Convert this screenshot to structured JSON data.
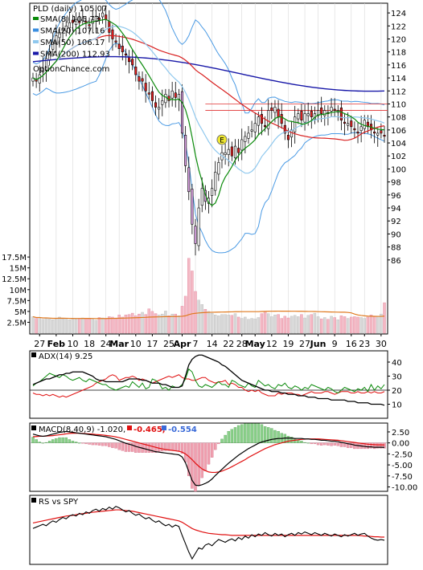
{
  "chart_data": {
    "type": "stock-chart",
    "symbol_line": "PLD (daily) 105.07",
    "watermark": "OptionChance.com",
    "price_axis": {
      "ylim": [
        84,
        125
      ],
      "ticks": [
        86,
        88,
        90,
        92,
        94,
        96,
        98,
        100,
        102,
        104,
        106,
        108,
        110,
        112,
        114,
        116,
        118,
        120,
        122,
        124
      ]
    },
    "volume_axis": {
      "ylim": [
        0,
        19000000
      ],
      "tick_labels": [
        "2.5M",
        "5M",
        "7.5M",
        "10M",
        "12.5M",
        "15M",
        "17.5M"
      ],
      "tick_values": [
        2500000,
        5000000,
        7500000,
        10000000,
        12500000,
        15000000,
        17500000
      ]
    },
    "x_axis": {
      "tick_labels": [
        "27",
        "Feb",
        "10",
        "18",
        "24",
        "Mar",
        "10",
        "17",
        "25",
        "Apr",
        "7",
        "14",
        "22",
        "28",
        "May",
        "12",
        "19",
        "27",
        "Jun",
        "9",
        "16",
        "23",
        "30"
      ],
      "tick_index": [
        2,
        7,
        12,
        17,
        22,
        26,
        31,
        36,
        41,
        45,
        49,
        54,
        59,
        63,
        67,
        72,
        77,
        82,
        86,
        91,
        96,
        100,
        105
      ],
      "bold_labels": [
        "Feb",
        "Mar",
        "Apr",
        "May",
        "Jun"
      ],
      "count": 107
    },
    "legend": [
      {
        "label": "SMA(8) 105.73",
        "color": "#0a8a0a"
      },
      {
        "label": "SMA(20) 107.16",
        "color": "#3a8ee0"
      },
      {
        "label": "SMA(50) 106.17",
        "color": "#8fc8ee"
      },
      {
        "label": "SMA(200) 112.93",
        "color": "#1818a8"
      }
    ],
    "event_marker": "E",
    "closes": [
      114,
      113.5,
      114.5,
      115.5,
      117,
      118,
      119.5,
      120.5,
      121,
      121.5,
      122,
      122.5,
      122.5,
      123,
      122.5,
      123,
      122.5,
      122,
      123,
      123.5,
      123,
      124,
      123,
      121,
      120,
      119.5,
      118.5,
      118,
      117.5,
      116.5,
      116,
      114.5,
      113.5,
      113.5,
      112,
      111.5,
      110.5,
      109.5,
      109.5,
      110.5,
      111.5,
      110.5,
      112,
      111,
      111.5,
      105.5,
      100.5,
      96.5,
      91.5,
      88.5,
      94,
      97,
      95,
      95.5,
      97,
      99.5,
      101,
      102.5,
      102.5,
      103,
      102,
      103.5,
      102.5,
      104.5,
      105,
      105.5,
      106,
      107,
      108,
      107,
      106.5,
      109,
      109,
      109.5,
      108,
      107,
      105.5,
      104.5,
      106,
      108,
      108.5,
      107.5,
      108.5,
      108.5,
      108,
      108.5,
      109,
      108.5,
      109,
      108.5,
      109.5,
      109,
      109,
      107.5,
      107,
      107,
      106.5,
      106,
      105.5,
      106.5,
      107.5,
      106.5,
      106,
      105.5,
      105.5,
      105.5,
      105.07
    ],
    "volumes": [
      3800000,
      3400000,
      3600000,
      3200000,
      3500000,
      3300000,
      3100000,
      3400000,
      3700000,
      3300000,
      3400000,
      3100000,
      3200000,
      3300000,
      3400000,
      3500000,
      3400000,
      3300000,
      3200000,
      3000000,
      3600000,
      3500000,
      3300000,
      3800000,
      3700000,
      3500000,
      4200000,
      3700000,
      4200000,
      4300000,
      4600000,
      4000000,
      4400000,
      4800000,
      4300000,
      5600000,
      5000000,
      4500000,
      4200000,
      4400000,
      5100000,
      4000000,
      4400000,
      4400000,
      4000000,
      6200000,
      8500000,
      17200000,
      14300000,
      9600000,
      7600000,
      6600000,
      5500000,
      5000000,
      4600000,
      4200000,
      4000000,
      4300000,
      4300000,
      4200000,
      4100000,
      4500000,
      3700000,
      3400000,
      3700000,
      3200000,
      3400000,
      3300000,
      3600000,
      4500000,
      5000000,
      4500000,
      3800000,
      4200000,
      4300000,
      3400000,
      3900000,
      3500000,
      3900000,
      4100000,
      3800000,
      4300000,
      3500000,
      4100000,
      4300000,
      4600000,
      3800000,
      3300000,
      3600000,
      3200000,
      3900000,
      3600000,
      3100000,
      4000000,
      3800000,
      3400000,
      3700000,
      3800000,
      3700000,
      3600000,
      3400000,
      3700000,
      4200000,
      3800000,
      3900000,
      4400000,
      7000000
    ],
    "adx_panel": {
      "label": "ADX(14) 9.25",
      "ylim": [
        0,
        48
      ],
      "ticks": [
        10,
        20,
        30,
        40
      ],
      "reference_lines": [
        20
      ],
      "adx": [
        24,
        25,
        26,
        27,
        28,
        28,
        29,
        30,
        31,
        31,
        32,
        32,
        33,
        33,
        33,
        33,
        32,
        31,
        30,
        28,
        27,
        27,
        26,
        26,
        26,
        26,
        26,
        26,
        27,
        28,
        28,
        28,
        28,
        27,
        27,
        26,
        25,
        25,
        25,
        24,
        24,
        23,
        22,
        22,
        22,
        23,
        30,
        38,
        42,
        44,
        45,
        45,
        44,
        43,
        42,
        41,
        40,
        38,
        37,
        35,
        33,
        31,
        29,
        27,
        26,
        25,
        24,
        23,
        22,
        21,
        20,
        20,
        19,
        19,
        19,
        18,
        18,
        17,
        17,
        17,
        16,
        16,
        16,
        15,
        15,
        15,
        14,
        14,
        14,
        14,
        13,
        13,
        13,
        13,
        13,
        12,
        12,
        12,
        11,
        11,
        11,
        11,
        10,
        10,
        10,
        10,
        9.25
      ],
      "plus_di": [
        23,
        25,
        26,
        28,
        30,
        32,
        31,
        30,
        29,
        31,
        30,
        28,
        27,
        28,
        29,
        27,
        26,
        28,
        27,
        26,
        25,
        24,
        24,
        22,
        21,
        20,
        21,
        22,
        23,
        22,
        26,
        24,
        22,
        25,
        21,
        22,
        28,
        27,
        25,
        21,
        22,
        20,
        23,
        22,
        22,
        24,
        28,
        35,
        33,
        27,
        23,
        22,
        24,
        23,
        22,
        24,
        26,
        24,
        24,
        22,
        27,
        26,
        24,
        23,
        22,
        25,
        23,
        22,
        27,
        25,
        23,
        24,
        22,
        21,
        24,
        23,
        25,
        22,
        21,
        23,
        22,
        20,
        22,
        21,
        24,
        23,
        22,
        21,
        20,
        22,
        21,
        19,
        18,
        20,
        22,
        21,
        20,
        19,
        21,
        20,
        22,
        19,
        24,
        20,
        23,
        21,
        24
      ],
      "minus_di": [
        18,
        17,
        17,
        16,
        17,
        16,
        17,
        16,
        15,
        16,
        15,
        16,
        17,
        18,
        19,
        20,
        21,
        22,
        23,
        25,
        26,
        27,
        28,
        30,
        31,
        30,
        27,
        28,
        29,
        29,
        30,
        29,
        27,
        28,
        27,
        26,
        25,
        26,
        27,
        28,
        29,
        30,
        29,
        30,
        31,
        29,
        28,
        28,
        27,
        27,
        28,
        29,
        29,
        27,
        26,
        25,
        26,
        26,
        27,
        24,
        25,
        24,
        22,
        22,
        20,
        19,
        20,
        19,
        20,
        18,
        17,
        16,
        16,
        16,
        18,
        17,
        18,
        18,
        18,
        17,
        17,
        16,
        17,
        18,
        19,
        18,
        18,
        18,
        19,
        19,
        18,
        17,
        18,
        19,
        19,
        19,
        18,
        18,
        19,
        18,
        18,
        19,
        18,
        19,
        18,
        18,
        19
      ],
      "colors": {
        "adx": "#000000",
        "plus_di": "#0a8a0a",
        "minus_di": "#e01010"
      }
    },
    "macd_panel": {
      "label_prefix": "MACD(8,40,9) -1.020,",
      "signal_label": "-0.465,",
      "hist_label": "-0.554",
      "ylim": [
        -11,
        4.5
      ],
      "ticks": [
        2.5,
        0,
        -2.5,
        -5,
        -7.5,
        -10
      ],
      "tick_labels": [
        "2.50",
        "0.00",
        "-2.50",
        "-5.00",
        "-7.50",
        "-10.00"
      ],
      "macd": [
        2,
        1.8,
        1.6,
        1.5,
        1.6,
        1.8,
        2,
        2.2,
        2.4,
        2.5,
        2.6,
        2.5,
        2.4,
        2.3,
        2.2,
        2.1,
        2,
        1.9,
        1.8,
        1.7,
        1.6,
        1.5,
        1.4,
        1.2,
        1,
        0.8,
        0.5,
        0.2,
        -0.1,
        -0.3,
        -0.5,
        -0.8,
        -1,
        -1.2,
        -1.4,
        -1.6,
        -1.8,
        -2,
        -2.1,
        -2.2,
        -2.3,
        -2.4,
        -2.5,
        -2.6,
        -2.7,
        -3.2,
        -4.5,
        -6.5,
        -8.5,
        -9.6,
        -9.7,
        -9.5,
        -9.2,
        -8.8,
        -8.2,
        -7.4,
        -6.7,
        -6,
        -5.3,
        -4.6,
        -4,
        -3.4,
        -2.8,
        -2.3,
        -1.8,
        -1.3,
        -0.9,
        -0.5,
        -0.1,
        0.2,
        0.4,
        0.6,
        0.8,
        0.9,
        1,
        1,
        1.1,
        1.1,
        1.1,
        1,
        1,
        1,
        0.9,
        0.9,
        0.8,
        0.8,
        0.7,
        0.6,
        0.6,
        0.5,
        0.4,
        0.4,
        0.3,
        0.1,
        0,
        -0.2,
        -0.3,
        -0.5,
        -0.6,
        -0.7,
        -0.8,
        -0.9,
        -0.9,
        -1,
        -1,
        -1,
        -1.02
      ],
      "signal": [
        1.4,
        1.45,
        1.5,
        1.5,
        1.55,
        1.6,
        1.65,
        1.75,
        1.85,
        1.95,
        2.05,
        2.15,
        2.2,
        2.2,
        2.2,
        2.15,
        2.1,
        2.05,
        2,
        1.9,
        1.85,
        1.8,
        1.7,
        1.6,
        1.5,
        1.35,
        1.2,
        1,
        0.8,
        0.6,
        0.4,
        0.2,
        0,
        -0.2,
        -0.4,
        -0.6,
        -0.8,
        -1,
        -1.2,
        -1.35,
        -1.5,
        -1.6,
        -1.7,
        -1.8,
        -1.9,
        -2.1,
        -2.5,
        -3.1,
        -3.8,
        -4.6,
        -5.3,
        -5.9,
        -6.3,
        -6.6,
        -6.7,
        -6.7,
        -6.6,
        -6.4,
        -6.1,
        -5.8,
        -5.4,
        -5,
        -4.6,
        -4.2,
        -3.8,
        -3.3,
        -2.9,
        -2.5,
        -2.1,
        -1.7,
        -1.3,
        -1,
        -0.7,
        -0.4,
        -0.2,
        0,
        0.2,
        0.4,
        0.5,
        0.6,
        0.7,
        0.8,
        0.85,
        0.9,
        0.9,
        0.9,
        0.9,
        0.85,
        0.8,
        0.75,
        0.7,
        0.65,
        0.6,
        0.5,
        0.4,
        0.3,
        0.2,
        0.1,
        0,
        -0.1,
        -0.2,
        -0.3,
        -0.35,
        -0.4,
        -0.45,
        -0.45,
        -0.465
      ],
      "colors": {
        "macd": "#000000",
        "signal": "#e01010",
        "hist_pos": "#8ad08a",
        "hist_neg": "#f0a0b0"
      }
    },
    "rs_panel": {
      "label": "RS vs SPY",
      "ylim": [
        0,
        10
      ],
      "rs": [
        5.2,
        5.4,
        5.6,
        5.8,
        5.6,
        6,
        6.3,
        6.1,
        6.5,
        6.8,
        6.6,
        7,
        7.2,
        7,
        7.4,
        7.2,
        7.6,
        7.4,
        7.8,
        8,
        7.7,
        8.1,
        7.9,
        8.3,
        8,
        8.4,
        8.2,
        7.9,
        7.6,
        7.8,
        7.4,
        7.1,
        7.3,
        6.9,
        6.6,
        6.8,
        6.4,
        6.1,
        6.3,
        5.9,
        5.6,
        5.8,
        5.4,
        5.7,
        5.5,
        4.2,
        3,
        1.8,
        0.8,
        1.6,
        2.4,
        2.2,
        2.8,
        3,
        2.7,
        3.2,
        3.6,
        3.4,
        3.2,
        3.5,
        3.7,
        3.4,
        3.9,
        3.6,
        4.1,
        3.8,
        4.3,
        4,
        4.4,
        4.2,
        4.6,
        4.3,
        4.1,
        4.5,
        4.2,
        4.4,
        4,
        4.3,
        4.5,
        4.2,
        4.6,
        4.4,
        4.7,
        4.5,
        4.3,
        4.6,
        4.4,
        4.2,
        4.5,
        4.3,
        4.1,
        4.4,
        4.2,
        4,
        4.3,
        4.1,
        4.3,
        4.5,
        4.2,
        4.4,
        4.5,
        4.1,
        3.8,
        3.6,
        3.5,
        3.6,
        3.5
      ],
      "ma": [
        6,
        6.1,
        6.2,
        6.3,
        6.4,
        6.5,
        6.6,
        6.7,
        6.8,
        6.9,
        7,
        7.05,
        7.1,
        7.2,
        7.3,
        7.35,
        7.4,
        7.5,
        7.55,
        7.6,
        7.65,
        7.7,
        7.75,
        7.8,
        7.85,
        7.9,
        7.9,
        7.85,
        7.8,
        7.75,
        7.7,
        7.6,
        7.5,
        7.4,
        7.3,
        7.2,
        7.1,
        7,
        6.9,
        6.8,
        6.7,
        6.6,
        6.5,
        6.4,
        6.3,
        6.1,
        5.8,
        5.5,
        5.2,
        5,
        4.85,
        4.7,
        4.6,
        4.5,
        4.45,
        4.4,
        4.35,
        4.3,
        4.3,
        4.25,
        4.2,
        4.2,
        4.2,
        4.2,
        4.2,
        4.2,
        4.2,
        4.2,
        4.2,
        4.2,
        4.2,
        4.2,
        4.2,
        4.2,
        4.2,
        4.2,
        4.2,
        4.2,
        4.2,
        4.2,
        4.2,
        4.2,
        4.2,
        4.2,
        4.2,
        4.2,
        4.2,
        4.2,
        4.2,
        4.2,
        4.2,
        4.2,
        4.2,
        4.2,
        4.2,
        4.2,
        4.2,
        4.2,
        4.2,
        4.15,
        4.1,
        4.1,
        4.05,
        4,
        4,
        3.95,
        3.95
      ],
      "colors": {
        "rs": "#000000",
        "ma": "#e01010"
      }
    }
  }
}
